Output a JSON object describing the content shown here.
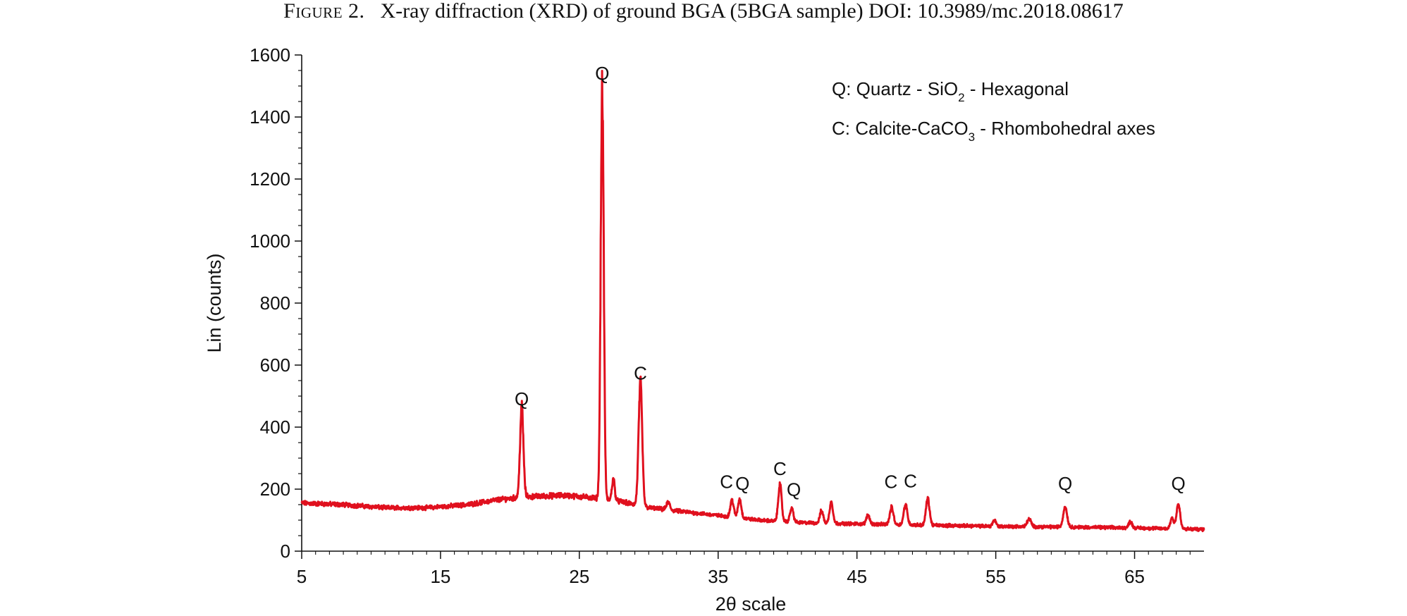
{
  "caption": {
    "figure_label": "Figure 2.",
    "text": "X-ray diffraction (XRD) of ground BGA (5BGA sample) DOI: 10.3989/mc.2018.08617"
  },
  "colors": {
    "series": "#e0101e",
    "axis": "#111111"
  },
  "chart_data": {
    "type": "line",
    "title": "",
    "xlabel": "2θ scale",
    "ylabel": "Lin (counts)",
    "xlim": [
      5,
      70
    ],
    "ylim": [
      0,
      1600
    ],
    "x_ticks": [
      5,
      15,
      25,
      35,
      45,
      55,
      65
    ],
    "y_ticks": [
      0,
      200,
      400,
      600,
      800,
      1000,
      1200,
      1400,
      1600
    ],
    "grid": false,
    "legend_position": "top-right",
    "legend": [
      {
        "prefix": "Q: Quartz - SiO",
        "subscript": "2",
        "suffix": " - Hexagonal"
      },
      {
        "prefix": "C: Calcite-CaCO",
        "subscript": "3",
        "suffix": " - Rhombohedral axes"
      }
    ],
    "series": [
      {
        "baseline": [
          [
            5,
            155
          ],
          [
            8,
            150
          ],
          [
            11,
            140
          ],
          [
            14,
            140
          ],
          [
            17,
            150
          ],
          [
            19,
            165
          ],
          [
            21,
            175
          ],
          [
            24,
            180
          ],
          [
            26,
            172
          ],
          [
            28,
            160
          ],
          [
            30,
            140
          ],
          [
            33,
            125
          ],
          [
            36,
            110
          ],
          [
            38,
            100
          ],
          [
            41,
            92
          ],
          [
            45,
            88
          ],
          [
            50,
            84
          ],
          [
            55,
            80
          ],
          [
            60,
            78
          ],
          [
            65,
            75
          ],
          [
            70,
            70
          ]
        ],
        "peaks": [
          {
            "x": 20.85,
            "height": 290,
            "width": 0.12
          },
          {
            "x": 26.65,
            "height": 1320,
            "width": 0.11
          },
          {
            "x": 27.45,
            "height": 70,
            "width": 0.1
          },
          {
            "x": 29.4,
            "height": 395,
            "width": 0.13
          },
          {
            "x": 31.4,
            "height": 25,
            "width": 0.12
          },
          {
            "x": 36.0,
            "height": 55,
            "width": 0.12
          },
          {
            "x": 36.55,
            "height": 60,
            "width": 0.12
          },
          {
            "x": 39.45,
            "height": 120,
            "width": 0.12
          },
          {
            "x": 40.3,
            "height": 45,
            "width": 0.12
          },
          {
            "x": 42.45,
            "height": 40,
            "width": 0.12
          },
          {
            "x": 43.15,
            "height": 70,
            "width": 0.12
          },
          {
            "x": 45.8,
            "height": 30,
            "width": 0.12
          },
          {
            "x": 47.5,
            "height": 55,
            "width": 0.13
          },
          {
            "x": 48.5,
            "height": 65,
            "width": 0.13
          },
          {
            "x": 50.1,
            "height": 85,
            "width": 0.13
          },
          {
            "x": 54.9,
            "height": 20,
            "width": 0.12
          },
          {
            "x": 57.4,
            "height": 25,
            "width": 0.14
          },
          {
            "x": 60.0,
            "height": 65,
            "width": 0.14
          },
          {
            "x": 64.7,
            "height": 20,
            "width": 0.12
          },
          {
            "x": 67.7,
            "height": 35,
            "width": 0.12
          },
          {
            "x": 68.15,
            "height": 80,
            "width": 0.13
          }
        ]
      }
    ],
    "peak_labels": [
      {
        "text": "Q",
        "x": 20.85,
        "y": 470
      },
      {
        "text": "Q",
        "x": 26.65,
        "y": 1520
      },
      {
        "text": "C",
        "x": 29.4,
        "y": 553
      },
      {
        "text": "C",
        "x": 35.6,
        "y": 203
      },
      {
        "text": "Q",
        "x": 36.75,
        "y": 198
      },
      {
        "text": "C",
        "x": 39.45,
        "y": 245
      },
      {
        "text": "Q",
        "x": 40.45,
        "y": 178
      },
      {
        "text": "C",
        "x": 47.45,
        "y": 203
      },
      {
        "text": "C",
        "x": 48.85,
        "y": 206
      },
      {
        "text": "Q",
        "x": 60.0,
        "y": 198
      },
      {
        "text": "Q",
        "x": 68.15,
        "y": 198
      }
    ]
  }
}
